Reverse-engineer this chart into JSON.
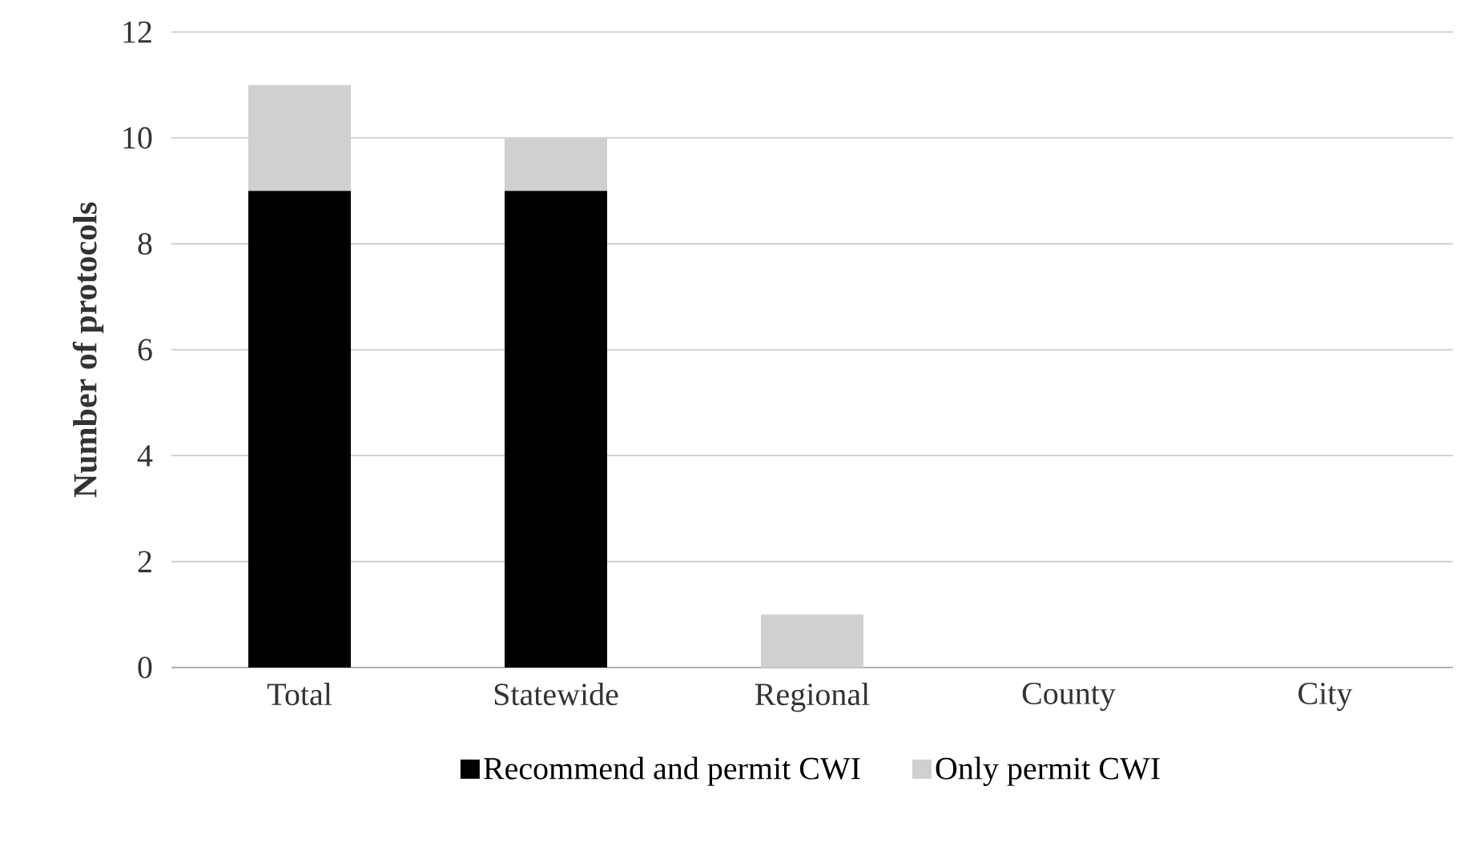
{
  "chart_data": {
    "type": "bar",
    "stacked": true,
    "ylabel": "Number of protocols",
    "categories": [
      "Total",
      "Statewide",
      "Regional",
      "County",
      "City"
    ],
    "series": [
      {
        "name": "Recommend and permit CWI",
        "color": "#000000",
        "values": [
          9,
          9,
          0,
          0,
          0
        ]
      },
      {
        "name": "Only permit CWI",
        "color": "#d0d0d0",
        "values": [
          2,
          1,
          1,
          0,
          0
        ]
      }
    ],
    "ylim": [
      0,
      12
    ],
    "yticks": [
      0,
      2,
      4,
      6,
      8,
      10,
      12
    ],
    "grid": "y",
    "legend": "bottom"
  }
}
